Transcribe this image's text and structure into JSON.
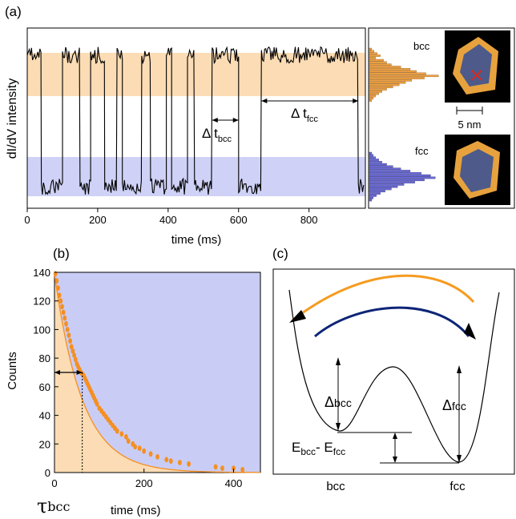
{
  "chart_data": [
    {
      "panel": "(a)",
      "type": "line",
      "xlabel": "time (ms)",
      "ylabel": "dI/dV intensity",
      "xlim": [
        0,
        960
      ],
      "xticks": [
        0,
        200,
        400,
        600,
        800
      ],
      "bands": {
        "bcc_color": "#fbdcb4",
        "fcc_color": "#cfd2f6"
      },
      "trace_levels": {
        "high": 0.85,
        "low": 0.12
      },
      "trace_segments": [
        {
          "start": 0,
          "end": 40,
          "level": "high"
        },
        {
          "start": 40,
          "end": 100,
          "level": "low"
        },
        {
          "start": 100,
          "end": 150,
          "level": "high"
        },
        {
          "start": 150,
          "end": 180,
          "level": "low"
        },
        {
          "start": 180,
          "end": 220,
          "level": "high"
        },
        {
          "start": 220,
          "end": 255,
          "level": "low"
        },
        {
          "start": 255,
          "end": 270,
          "level": "high"
        },
        {
          "start": 270,
          "end": 325,
          "level": "low"
        },
        {
          "start": 325,
          "end": 350,
          "level": "high"
        },
        {
          "start": 350,
          "end": 395,
          "level": "low"
        },
        {
          "start": 395,
          "end": 410,
          "level": "high"
        },
        {
          "start": 410,
          "end": 455,
          "level": "low"
        },
        {
          "start": 455,
          "end": 475,
          "level": "high"
        },
        {
          "start": 475,
          "end": 525,
          "level": "low"
        },
        {
          "start": 525,
          "end": 600,
          "level": "high"
        },
        {
          "start": 600,
          "end": 665,
          "level": "low"
        },
        {
          "start": 665,
          "end": 940,
          "level": "high"
        },
        {
          "start": 940,
          "end": 955,
          "level": "low"
        }
      ],
      "annotations": {
        "dt_bcc_prefix": "Δ t",
        "dt_bcc_sub": "bcc",
        "dt_fcc_prefix": "Δ t",
        "dt_fcc_sub": "fcc",
        "dt_bcc_range": [
          525,
          600
        ],
        "dt_fcc_range": [
          665,
          940
        ]
      },
      "trace_color": "#000000"
    },
    {
      "panel": "histogram",
      "type": "bar",
      "orientation": "horizontal",
      "bcc_color": "#f0a040",
      "fcc_color": "#6a6ad8",
      "labels": {
        "bcc": "bcc",
        "fcc": "fcc"
      }
    },
    {
      "panel": "(b)",
      "type": "scatter",
      "xlabel": "time (ms)",
      "ylabel": "Counts",
      "xlim": [
        0,
        460
      ],
      "ylim": [
        0,
        140
      ],
      "xticks": [
        0,
        200,
        400
      ],
      "yticks": [
        0,
        20,
        40,
        60,
        80,
        100,
        120,
        140
      ],
      "series": [
        {
          "name": "",
          "x": [
            2,
            5,
            8,
            11,
            14,
            17,
            20,
            23,
            26,
            29,
            32,
            35,
            38,
            41,
            44,
            47,
            50,
            53,
            56,
            59,
            62,
            65,
            68,
            71,
            74,
            77,
            80,
            83,
            86,
            89,
            92,
            95,
            100,
            105,
            110,
            115,
            120,
            125,
            130,
            135,
            140,
            150,
            160,
            165,
            175,
            180,
            190,
            200,
            215,
            230,
            250,
            260,
            280,
            300,
            360,
            375,
            400,
            420
          ],
          "y": [
            139,
            134,
            129,
            124,
            120,
            116,
            112,
            108,
            104,
            100,
            96,
            92,
            88,
            85,
            82,
            79,
            76,
            74,
            72,
            70,
            69,
            68,
            66,
            64,
            62,
            60,
            58,
            56,
            54,
            52,
            50,
            48,
            45,
            43,
            41,
            39,
            37,
            35,
            33,
            31,
            29,
            27,
            25,
            22,
            20,
            18,
            17,
            15,
            13,
            11,
            9,
            8,
            7,
            6,
            4,
            3,
            3,
            2
          ]
        }
      ],
      "fit": {
        "type": "exponential",
        "y0": 139,
        "tau": 62
      },
      "tau_marker": {
        "x": 62,
        "y": 70
      },
      "tau_label_main": "τ",
      "tau_label_sub": "bcc",
      "fills": {
        "left": "#fbdcb4",
        "right": "#c9cdf5"
      },
      "point_color": "#f58f22"
    },
    {
      "panel": "(c)",
      "type": "diagram",
      "labels": {
        "delta_bcc_main": "Δ",
        "delta_bcc_sub": "bcc",
        "delta_fcc_main": "Δ",
        "delta_fcc_sub": "fcc",
        "e_main_1": "E",
        "e_sub_1": "bcc",
        "e_mid": "- E",
        "e_sub_2": "fcc",
        "x_left": "bcc",
        "x_right": "fcc"
      },
      "arrow_colors": {
        "top": "#f59b20",
        "bottom": "#0d2577"
      }
    }
  ],
  "image_labels": {
    "panel_a": "(a)",
    "panel_b": "(b)",
    "panel_c": "(c)",
    "scale_bar": "5 nm"
  }
}
